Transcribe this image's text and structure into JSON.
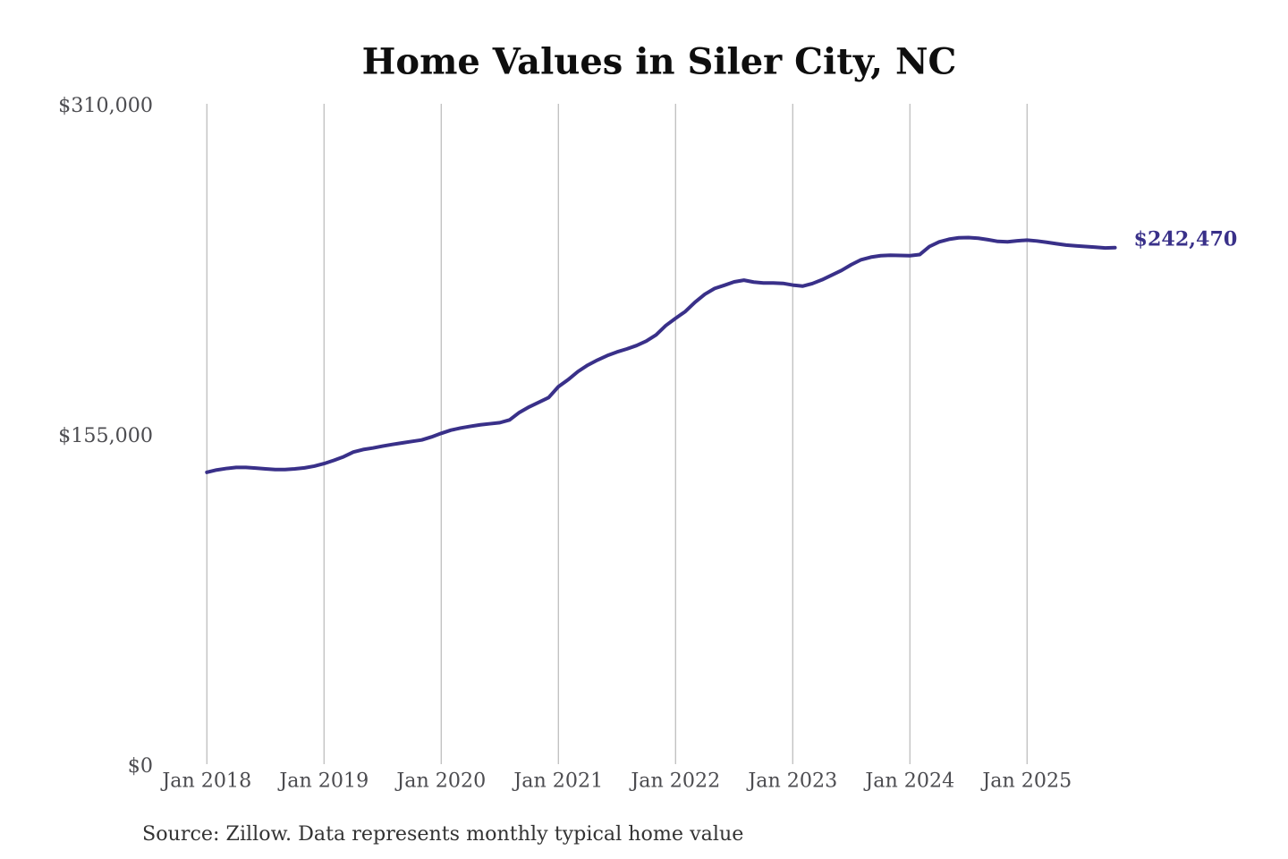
{
  "chart_data": {
    "type": "line",
    "title": "Home Values in Siler City, NC",
    "source_note": "Source: Zillow. Data represents monthly typical home value",
    "end_label": "$242,470",
    "end_value": 242470,
    "xlabel": "",
    "ylabel": "",
    "ylim": [
      0,
      310000
    ],
    "grid": "vertical-yearly-gridlines",
    "legend": "none",
    "y_ticks": [
      {
        "label": "$310,000",
        "value": 310000
      },
      {
        "label": "$155,000",
        "value": 155000
      },
      {
        "label": "$0",
        "value": 0
      }
    ],
    "x_ticks": [
      {
        "label": "Jan 2018",
        "year": 2018
      },
      {
        "label": "Jan 2019",
        "year": 2019
      },
      {
        "label": "Jan 2020",
        "year": 2020
      },
      {
        "label": "Jan 2021",
        "year": 2021
      },
      {
        "label": "Jan 2022",
        "year": 2022
      },
      {
        "label": "Jan 2023",
        "year": 2023
      },
      {
        "label": "Jan 2024",
        "year": 2024
      },
      {
        "label": "Jan 2025",
        "year": 2025
      }
    ],
    "series": [
      {
        "name": "Monthly typical home value",
        "start_month": "2018-01",
        "end_month": "2025-10",
        "values": [
          137000,
          138100,
          138800,
          139300,
          139300,
          139000,
          138600,
          138300,
          138300,
          138600,
          139100,
          139900,
          141100,
          142600,
          144300,
          146500,
          147700,
          148400,
          149300,
          150100,
          150800,
          151500,
          152200,
          153600,
          155300,
          156800,
          157800,
          158600,
          159300,
          159800,
          160300,
          161600,
          165100,
          167700,
          169900,
          172100,
          177200,
          180500,
          184300,
          187300,
          189700,
          191800,
          193500,
          194900,
          196500,
          198600,
          201500,
          205900,
          209300,
          212500,
          216900,
          220600,
          223300,
          224800,
          226400,
          227200,
          226300,
          225900,
          225900,
          225700,
          224900,
          224400,
          225600,
          227400,
          229600,
          231800,
          234500,
          236800,
          238000,
          238700,
          238900,
          238800,
          238700,
          239200,
          243000,
          245200,
          246400,
          247100,
          247200,
          246900,
          246200,
          245400,
          245200,
          245700,
          246000,
          245600,
          245000,
          244300,
          243700,
          243300,
          243000,
          242700,
          242300,
          242470
        ]
      }
    ],
    "colors": {
      "background": "#ffffff",
      "line": "#393089",
      "end_label": "#393089",
      "gridline": "#bfbfbf",
      "title": "#0e0e0e",
      "tick_label": "#4c4c50",
      "source_note": "#333333"
    }
  }
}
